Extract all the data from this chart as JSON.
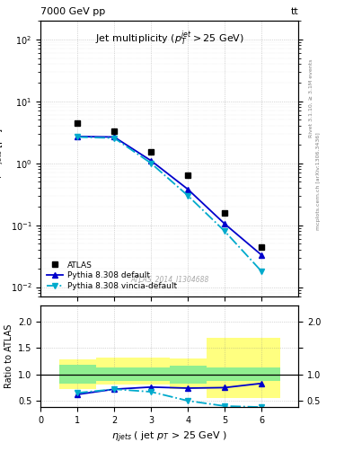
{
  "title_top": "7000 GeV pp",
  "title_right": "tt",
  "main_title": "Jet multiplicity ($p_T^{jet}>$25 GeV)",
  "xlabel": "$\\eta_{jets}$ ( jet $p_T$ > 25 GeV )",
  "ylabel_main": "d$\\sigma$/d$n_{jets}$ [pb]",
  "ylabel_ratio": "Ratio to ATLAS",
  "watermark": "ATLAS_2014_I1304688",
  "right_label1": "Rivet 3.1.10, ≥ 3.1M events",
  "right_label2": "mcplots.cern.ch [arXiv:1306.3436]",
  "atlas_x": [
    1,
    2,
    3,
    4,
    5,
    6
  ],
  "atlas_y": [
    4.5,
    3.3,
    1.55,
    0.65,
    0.155,
    0.044
  ],
  "pythia_default_x": [
    1,
    2,
    3,
    4,
    5,
    6
  ],
  "pythia_default_y": [
    2.7,
    2.65,
    1.1,
    0.38,
    0.105,
    0.033
  ],
  "pythia_vincia_x": [
    1,
    2,
    3,
    4,
    5,
    6
  ],
  "pythia_vincia_y": [
    2.65,
    2.55,
    1.0,
    0.3,
    0.08,
    0.018
  ],
  "ratio_default_x": [
    1,
    2,
    3,
    4,
    5,
    6
  ],
  "ratio_default_y": [
    0.62,
    0.72,
    0.76,
    0.74,
    0.75,
    0.83
  ],
  "ratio_vincia_x": [
    1,
    2,
    3,
    4,
    5,
    6
  ],
  "ratio_vincia_y": [
    0.65,
    0.72,
    0.67,
    0.5,
    0.4,
    0.38
  ],
  "band_x_edges": [
    0.5,
    1.5,
    2.5,
    3.5,
    4.5,
    5.5,
    6.5
  ],
  "band_green_low": [
    0.82,
    0.87,
    0.87,
    0.83,
    0.87,
    0.87
  ],
  "band_green_high": [
    1.18,
    1.13,
    1.13,
    1.17,
    1.13,
    1.13
  ],
  "band_yellow_low": [
    0.72,
    0.8,
    0.8,
    0.72,
    0.55,
    0.55
  ],
  "band_yellow_high": [
    1.28,
    1.32,
    1.32,
    1.3,
    1.7,
    1.7
  ],
  "color_atlas": "black",
  "color_default": "#0000cc",
  "color_vincia": "#00aacc",
  "xlim": [
    0,
    7
  ],
  "ylim_main": [
    0.007,
    200
  ],
  "ylim_ratio": [
    0.38,
    2.3
  ],
  "ratio_yticks": [
    0.5,
    1.0,
    1.5,
    2.0
  ]
}
